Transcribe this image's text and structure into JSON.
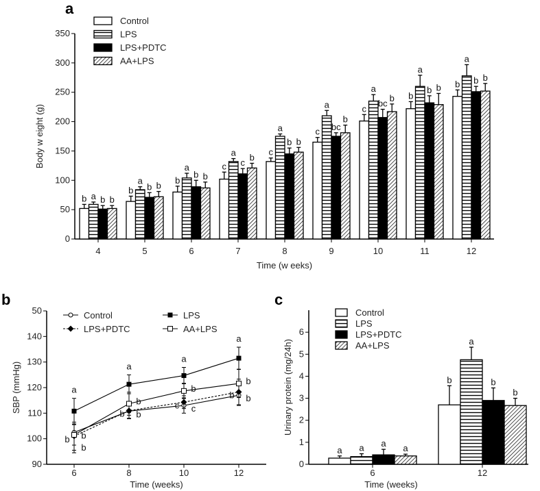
{
  "chart_data": [
    {
      "panel": "a",
      "type": "bar",
      "xlabel": "Time (w eeks)",
      "ylabel": "Body w eight (g)",
      "ylim": [
        0,
        350
      ],
      "yticks": [
        "0",
        "50",
        "100",
        "150",
        "200",
        "250",
        "300",
        "350"
      ],
      "categories": [
        "4",
        "5",
        "6",
        "7",
        "8",
        "9",
        "10",
        "11",
        "12"
      ],
      "legend": "top-left",
      "series": [
        {
          "name": "Control",
          "fill": "white",
          "values": [
            52,
            64,
            80,
            102,
            132,
            165,
            201,
            222,
            243
          ],
          "errors": [
            7,
            9,
            10,
            12,
            6,
            8,
            11,
            12,
            11
          ],
          "letters": [
            "b",
            "b",
            "b",
            "c",
            "c",
            "c",
            "c",
            "b",
            "b"
          ]
        },
        {
          "name": "LPS",
          "fill": "hlines",
          "values": [
            59,
            84,
            104,
            132,
            175,
            210,
            235,
            260,
            278
          ],
          "errors": [
            4,
            5,
            8,
            5,
            4,
            9,
            11,
            19,
            19
          ],
          "letters": [
            "a",
            "a",
            "a",
            "a",
            "a",
            "a",
            "a",
            "a",
            "a"
          ]
        },
        {
          "name": "LPS+PDTC",
          "fill": "black",
          "values": [
            51,
            71,
            89,
            111,
            145,
            175,
            207,
            232,
            251
          ],
          "errors": [
            6,
            8,
            11,
            9,
            10,
            6,
            14,
            12,
            9
          ],
          "letters": [
            "b",
            "b",
            "b",
            "c",
            "b",
            "bc",
            "bc",
            "b",
            "b"
          ]
        },
        {
          "name": "AA+LPS",
          "fill": "hatch",
          "values": [
            52,
            72,
            87,
            121,
            148,
            181,
            217,
            229,
            252
          ],
          "errors": [
            5,
            9,
            10,
            8,
            8,
            13,
            13,
            19,
            13
          ],
          "letters": [
            "b",
            "b",
            "b",
            "b",
            "b",
            "b",
            "b",
            "b",
            "b"
          ]
        }
      ]
    },
    {
      "panel": "b",
      "type": "line",
      "xlabel": "Time (weeks)",
      "ylabel": "SBP (mmHg)",
      "ylim": [
        90,
        150
      ],
      "xlim": [
        5,
        13
      ],
      "yticks": [
        "90",
        "100",
        "110",
        "120",
        "130",
        "140",
        "50"
      ],
      "x": [
        6,
        8,
        10,
        12
      ],
      "legend": "top",
      "series": [
        {
          "name": "Control",
          "marker": "open-circle",
          "dash": false,
          "values": [
            102.5,
            110.8,
            113,
            117
          ],
          "errors": [
            8,
            3,
            3,
            4
          ],
          "letters": [
            "b",
            "b",
            "c",
            "b"
          ]
        },
        {
          "name": "LPS",
          "marker": "filled-square",
          "dash": false,
          "values": [
            110.8,
            121.3,
            124.7,
            131.5
          ],
          "errors": [
            5,
            3.7,
            3.2,
            4.3
          ],
          "letters": [
            "a",
            "a",
            "a",
            "a"
          ]
        },
        {
          "name": "LPS+PDTC",
          "marker": "filled-diamond",
          "dash": true,
          "values": [
            101,
            111,
            114.3,
            118.3
          ],
          "errors": [
            5.5,
            3,
            2.5,
            5
          ],
          "letters": [
            "b",
            "b",
            "c",
            "b"
          ]
        },
        {
          "name": "AA+LPS",
          "marker": "open-square",
          "dash": false,
          "values": [
            101.5,
            113.7,
            118.7,
            121.6
          ],
          "errors": [
            4,
            4.5,
            3,
            5.5
          ],
          "letters": [
            "b",
            "b",
            "b",
            "b"
          ]
        }
      ]
    },
    {
      "panel": "c",
      "type": "bar",
      "xlabel": "Time (weeks)",
      "ylabel": "Urinary protein (mg/24h)",
      "ylim": [
        0,
        7
      ],
      "yticks": [
        "0",
        "1",
        "2",
        "3",
        "4",
        "5",
        "6"
      ],
      "categories": [
        "6",
        "12"
      ],
      "legend": "top-left",
      "series": [
        {
          "name": "Control",
          "fill": "white",
          "values": [
            0.28,
            2.7
          ],
          "errors": [
            0.1,
            0.87
          ],
          "letters": [
            "a",
            "b"
          ]
        },
        {
          "name": "LPS",
          "fill": "hlines",
          "values": [
            0.35,
            4.75
          ],
          "errors": [
            0.13,
            0.57
          ],
          "letters": [
            "a",
            "a"
          ]
        },
        {
          "name": "LPS+PDTC",
          "fill": "black",
          "values": [
            0.43,
            2.9
          ],
          "errors": [
            0.25,
            0.57
          ],
          "letters": [
            "a",
            "b"
          ]
        },
        {
          "name": "AA+LPS",
          "fill": "hatch",
          "values": [
            0.38,
            2.67
          ],
          "errors": [
            0.08,
            0.33
          ],
          "letters": [
            "a",
            "b"
          ]
        }
      ]
    }
  ]
}
